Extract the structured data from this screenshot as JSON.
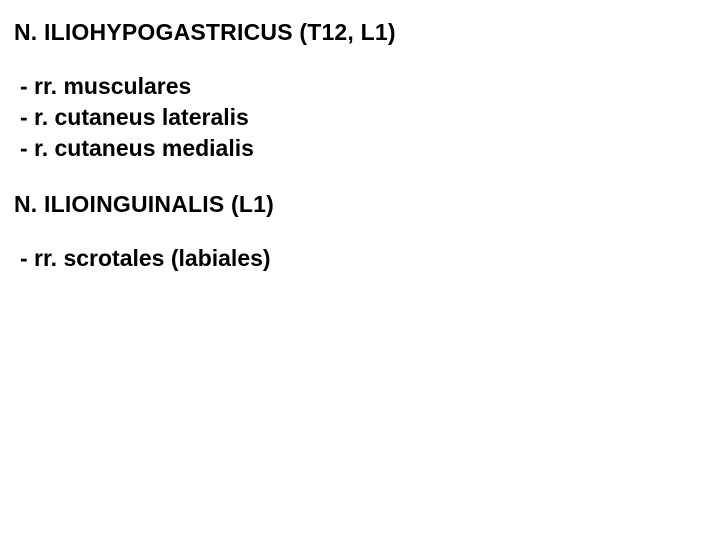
{
  "sections": [
    {
      "heading": "N. ILIOHYPOGASTRICUS (T12, L1)",
      "branches": [
        "- rr. musculares",
        "- r. cutaneus lateralis",
        "- r. cutaneus medialis"
      ]
    },
    {
      "heading": "N. ILIOINGUINALIS (L1)",
      "branches": [
        "- rr. scrotales (labiales)"
      ]
    }
  ],
  "style": {
    "background_color": "#ffffff",
    "text_color": "#000000",
    "font_family": "Arial",
    "heading_fontsize": 23,
    "branch_fontsize": 23,
    "font_weight": "bold"
  }
}
